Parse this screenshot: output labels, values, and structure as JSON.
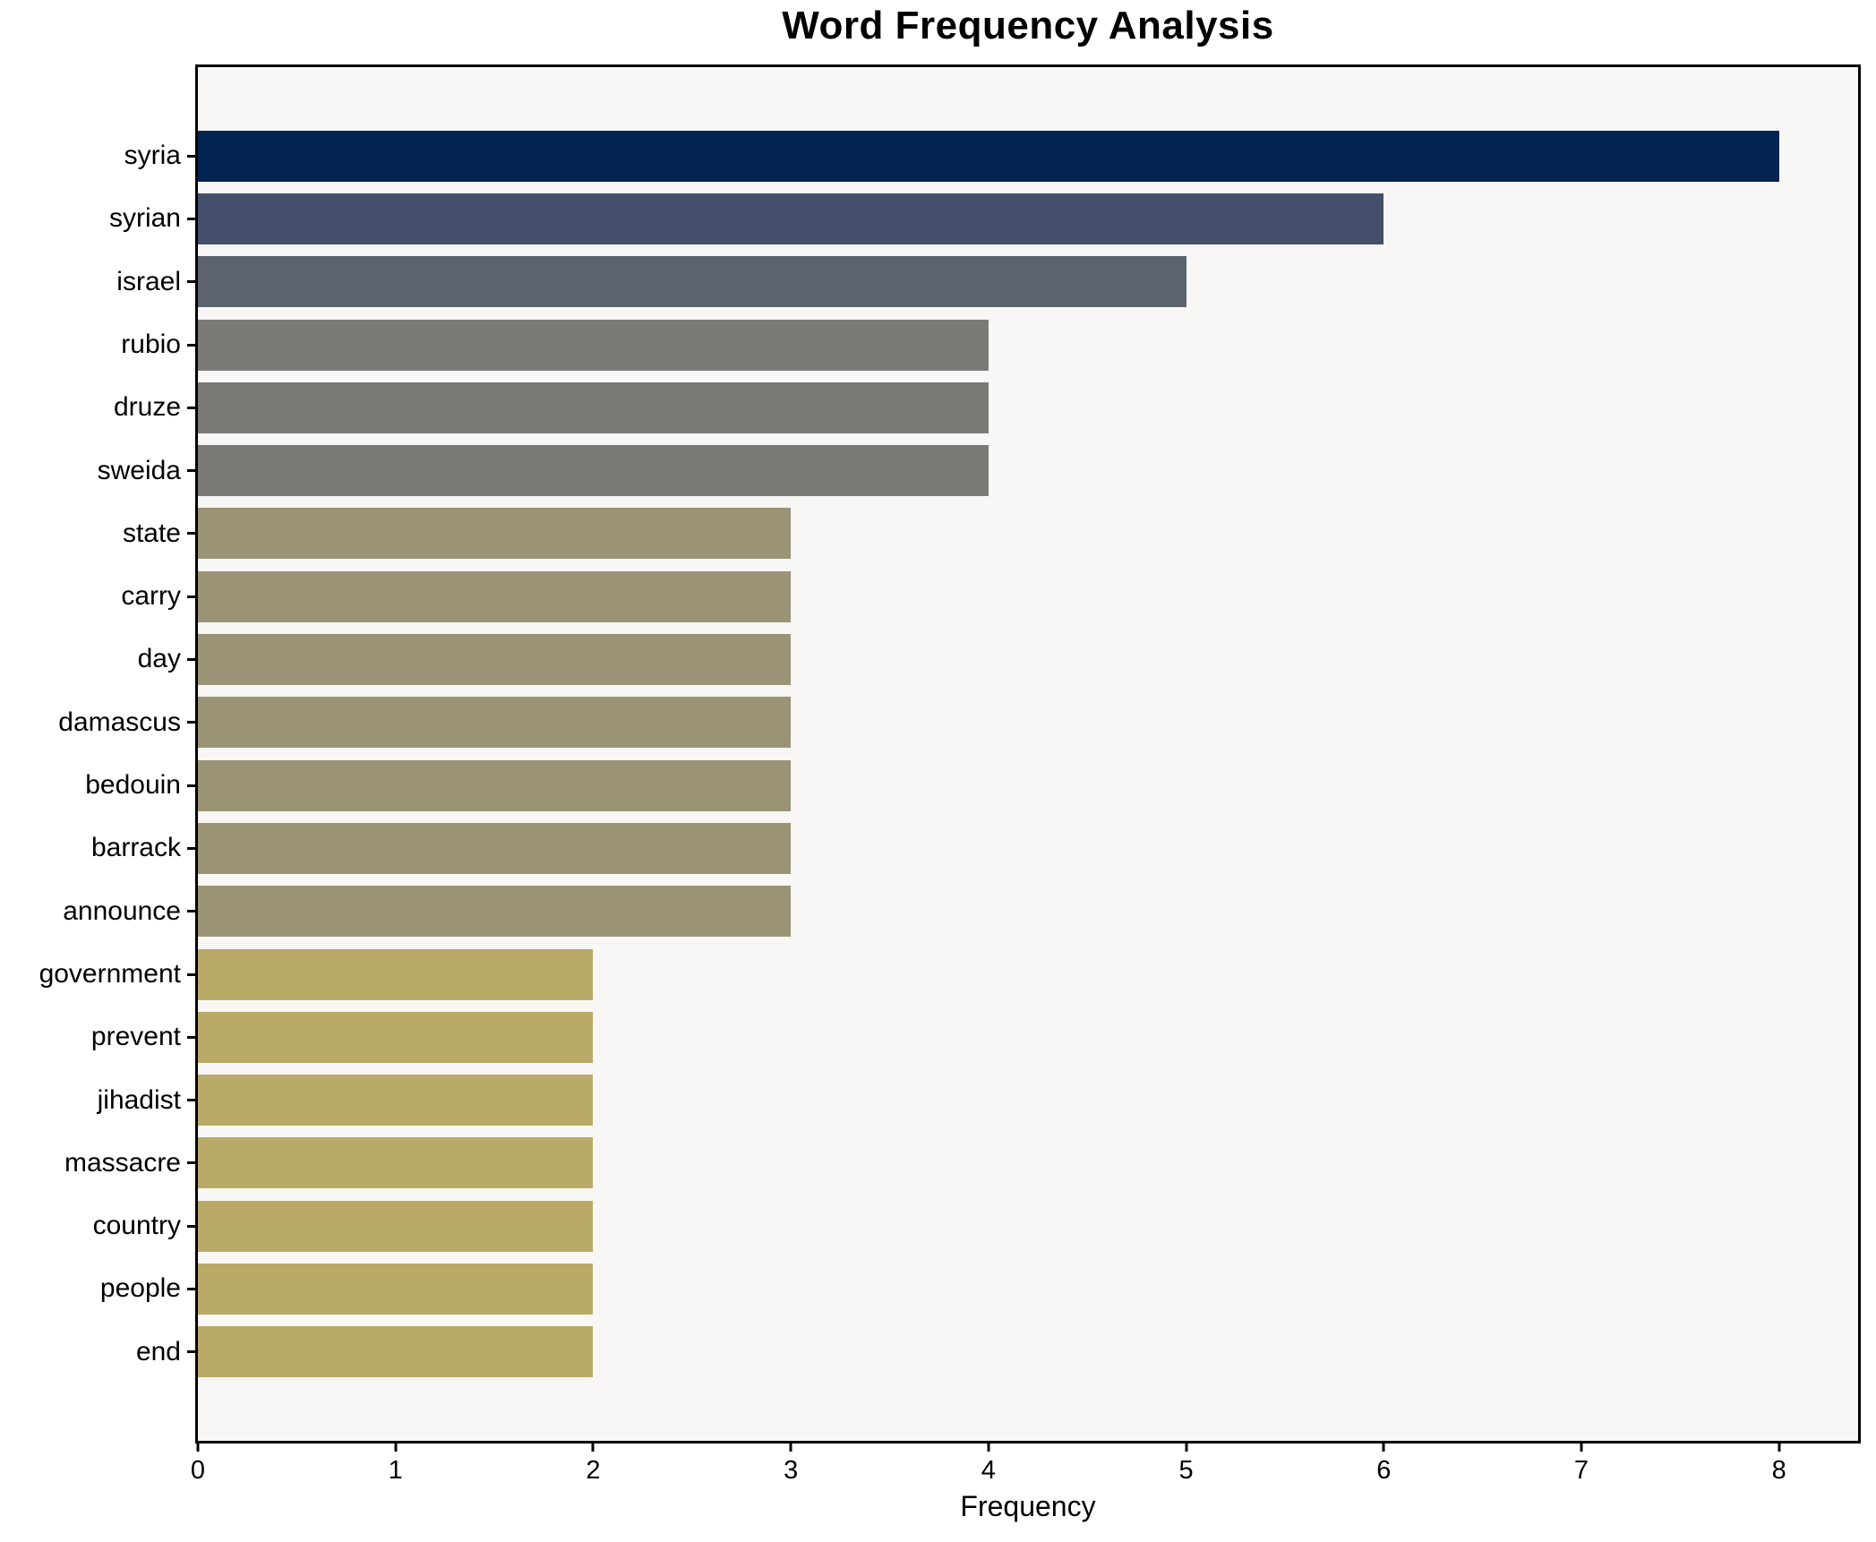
{
  "chart_data": {
    "type": "bar",
    "orientation": "horizontal",
    "title": "Word Frequency Analysis",
    "xlabel": "Frequency",
    "ylabel": "",
    "categories": [
      "syria",
      "syrian",
      "israel",
      "rubio",
      "druze",
      "sweida",
      "state",
      "carry",
      "day",
      "damascus",
      "bedouin",
      "barrack",
      "announce",
      "government",
      "prevent",
      "jihadist",
      "massacre",
      "country",
      "people",
      "end"
    ],
    "values": [
      8,
      6,
      5,
      4,
      4,
      4,
      3,
      3,
      3,
      3,
      3,
      3,
      3,
      2,
      2,
      2,
      2,
      2,
      2,
      2
    ],
    "bar_colors": [
      "#032350",
      "#444f6c",
      "#5c626e",
      "#7b7a76",
      "#7b7a76",
      "#7b7a76",
      "#9a9376",
      "#9a9376",
      "#9a9376",
      "#9a9376",
      "#9a9376",
      "#9a9376",
      "#9a9376",
      "#baaa68",
      "#baaa68",
      "#baaa68",
      "#baaa68",
      "#baaa68",
      "#baaa68",
      "#baaa68"
    ],
    "x_ticks": [
      0,
      1,
      2,
      3,
      4,
      5,
      6,
      7,
      8
    ],
    "xlim": [
      0,
      8.4
    ],
    "grid": false,
    "legend": "none",
    "plot_background": "#f8f7f5",
    "outer_background": "#ffffff",
    "spine_color": "#000000"
  }
}
